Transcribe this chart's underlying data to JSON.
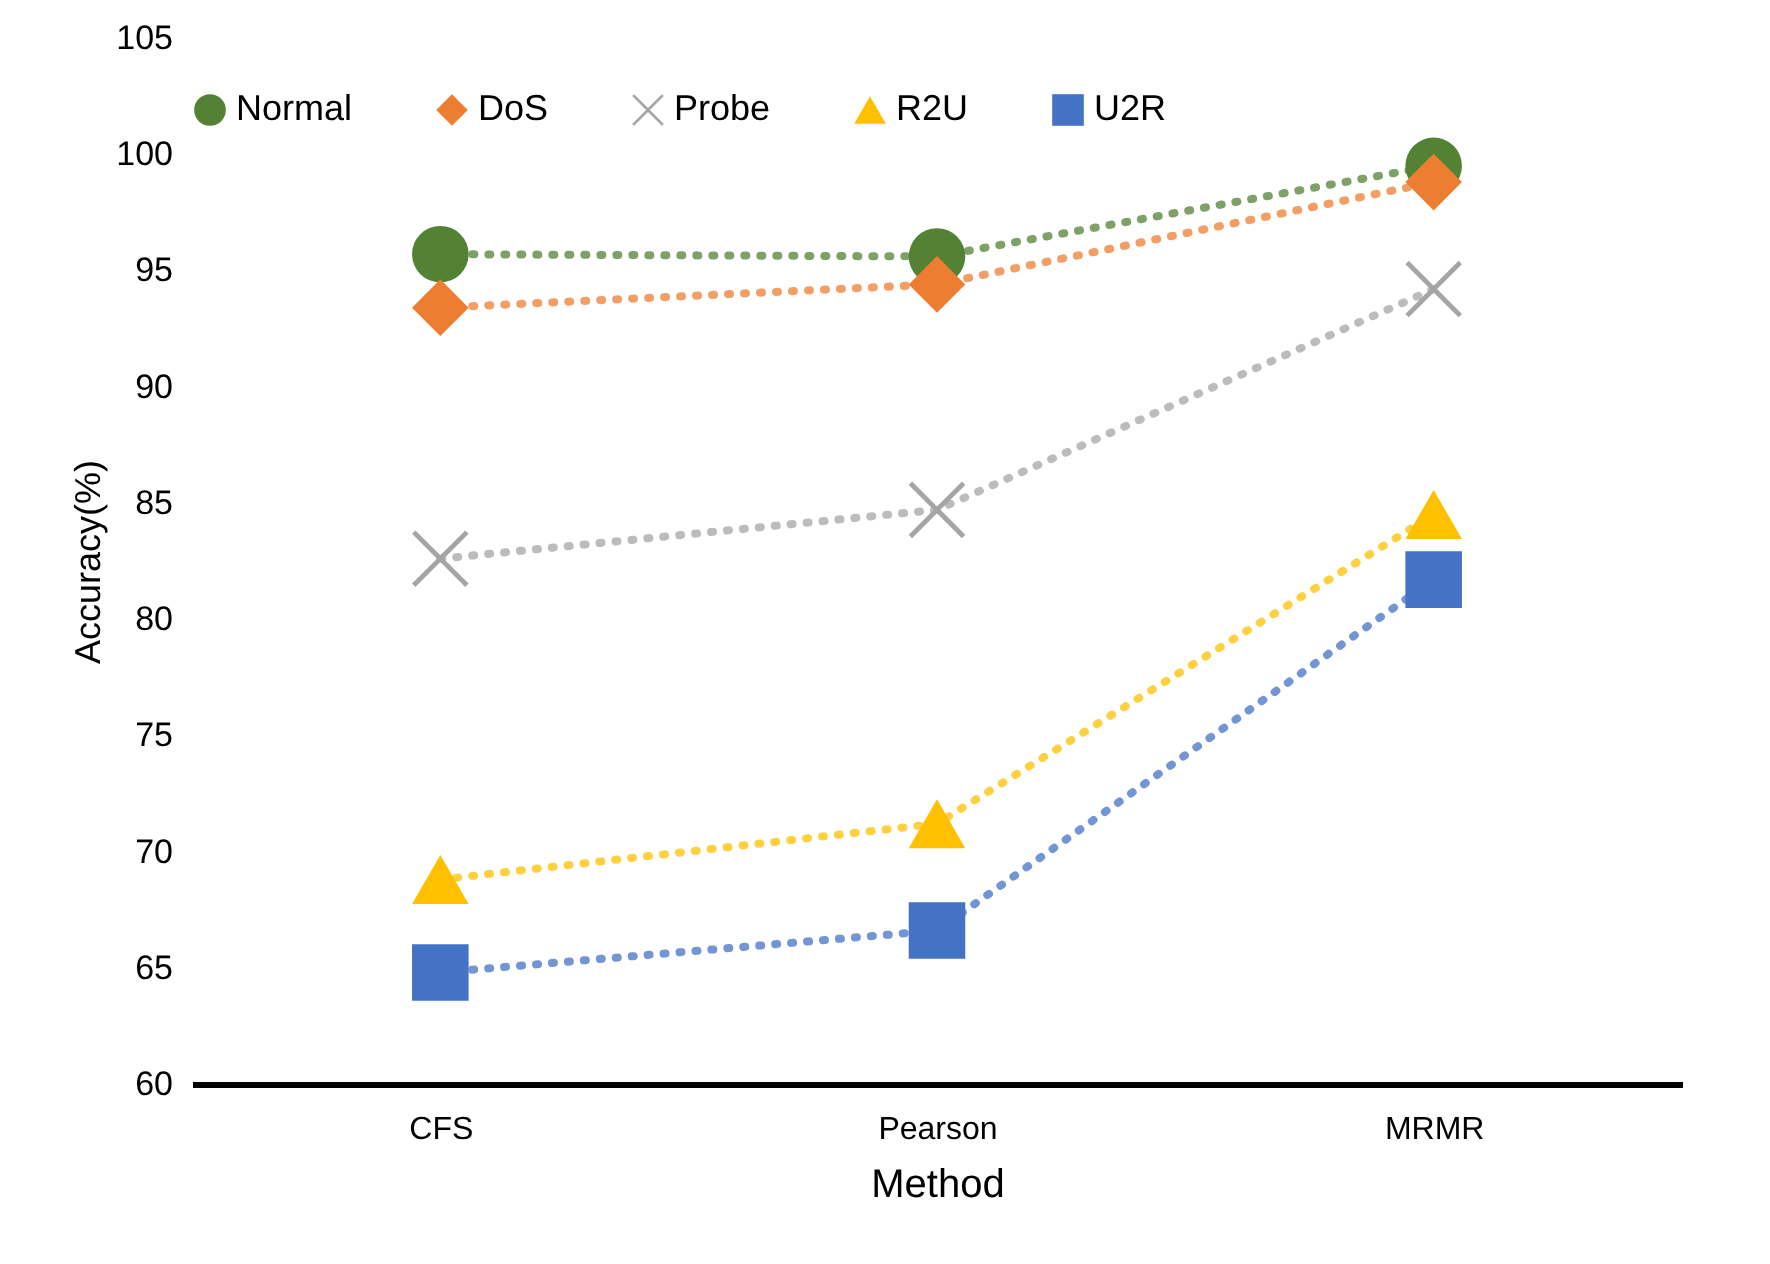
{
  "chart_data": {
    "type": "line",
    "xlabel": "Method",
    "ylabel": "Accuracy(%)",
    "categories": [
      "CFS",
      "Pearson",
      "MRMR"
    ],
    "series": [
      {
        "name": "Normal",
        "color": "#548235",
        "marker": "circle",
        "values": [
          95.7,
          95.6,
          99.5
        ]
      },
      {
        "name": "DoS",
        "color": "#ed7d31",
        "marker": "diamond",
        "values": [
          93.4,
          94.4,
          98.8
        ]
      },
      {
        "name": "Probe",
        "color": "#a5a5a5",
        "marker": "cross",
        "values": [
          82.6,
          84.7,
          94.2
        ]
      },
      {
        "name": "R2U",
        "color": "#ffc000",
        "marker": "triangle",
        "values": [
          68.8,
          71.2,
          84.5
        ]
      },
      {
        "name": "U2R",
        "color": "#4472c4",
        "marker": "square",
        "values": [
          64.8,
          66.6,
          81.7
        ]
      }
    ],
    "ylim": [
      60,
      105
    ],
    "yticks": [
      60,
      65,
      70,
      75,
      80,
      85,
      90,
      95,
      100,
      105
    ],
    "grid": false,
    "legend": "top",
    "line_style": "dotted"
  }
}
